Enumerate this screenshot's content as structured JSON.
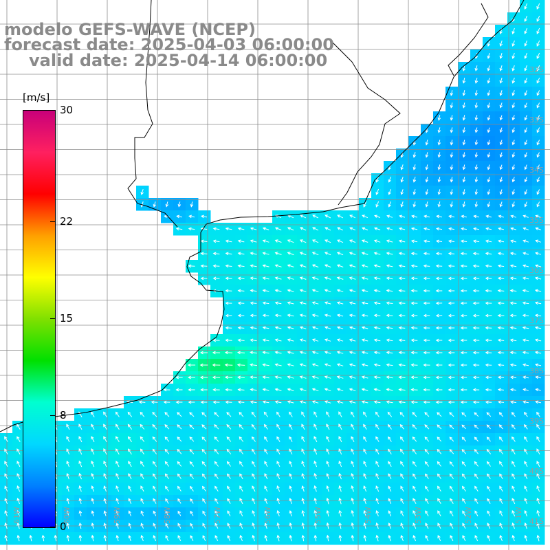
{
  "title": {
    "line1": "modelo GEFS-WAVE (NCEP)",
    "line2": "forecast date: 2025-04-03 06:00:00",
    "line3": "valid date: 2025-04-14 06:00:00"
  },
  "colorbar": {
    "unit": "[m/s]",
    "min": 0,
    "max": 30,
    "ticks": [
      {
        "value": 30,
        "label": "30"
      },
      {
        "value": 22,
        "label": "22"
      },
      {
        "value": 15,
        "label": "15"
      },
      {
        "value": 8,
        "label": "8"
      },
      {
        "value": 0,
        "label": "0"
      }
    ],
    "colors": [
      "#0000ff",
      "#0080ff",
      "#00d8ff",
      "#00ffd0",
      "#00e000",
      "#80e000",
      "#ffff00",
      "#ffa000",
      "#ff0000",
      "#ff2060",
      "#c8007a"
    ]
  },
  "map": {
    "field": "wind speed with direction arrows",
    "land_color": "#ffffff",
    "grid_color": "#8c8c8c",
    "coast_color": "#000000",
    "lat_labels": [
      "32S",
      "33S",
      "34S",
      "35S",
      "36S",
      "37S",
      "38S",
      "39S",
      "40S",
      "41S"
    ],
    "lon_labels": [
      "61W",
      "60W",
      "59W",
      "58W",
      "57W",
      "56W",
      "55W",
      "54W",
      "53W",
      "52W",
      "51W"
    ],
    "dominant_direction": "from east / southeast (arrows pointing west and northwest)"
  }
}
